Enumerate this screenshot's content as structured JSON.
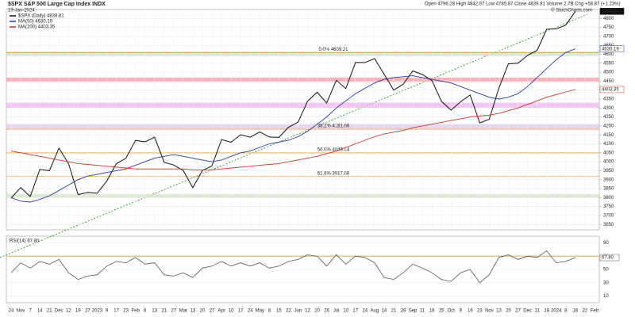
{
  "chart_data": {
    "type": "line",
    "title": "$SPX S&P 500 Large Cap Index INDX",
    "date": "19-Jan-2024",
    "quote": "Open 4796.28 High 4842.07 Low 4785.87 Close 4839.81 Volume 2.7B Chg +58.87 (+1.23%)",
    "credit": "© StockCharts.com",
    "categories": [
      "24",
      "Nov",
      "7",
      "14",
      "21",
      "Dec",
      "12",
      "19",
      "27",
      "2023",
      "9",
      "17",
      "23",
      "Feb",
      "6",
      "13",
      "21",
      "27",
      "Mar",
      "13",
      "20",
      "27",
      "Apr",
      "10",
      "17",
      "24",
      "May",
      "8",
      "15",
      "22",
      "Jun",
      "12",
      "20",
      "26",
      "Jul",
      "10",
      "17",
      "24",
      "Aug",
      "14",
      "21",
      "28",
      "Sep",
      "11",
      "18",
      "25",
      "Oct",
      "9",
      "16",
      "23",
      "Nov",
      "13",
      "20",
      "27",
      "Dec",
      "11",
      "18",
      "2024",
      "8",
      "16",
      "22",
      "Feb"
    ],
    "series": [
      {
        "name": "$SPX (Daily) 4839.81",
        "end_label": "4839.81",
        "color": "#111111",
        "values": [
          3797,
          3856,
          3806,
          3957,
          3950,
          4076,
          3990,
          3817,
          3829,
          3824,
          3892,
          3990,
          4019,
          4119,
          4111,
          4137,
          3997,
          3982,
          3951,
          3855,
          3951,
          3977,
          4124,
          4109,
          4151,
          4137,
          4167,
          4138,
          4136,
          4192,
          4221,
          4338,
          4388,
          4328,
          4455,
          4409,
          4554,
          4554,
          4576,
          4489,
          4400,
          4433,
          4507,
          4487,
          4453,
          4337,
          4288,
          4335,
          4373,
          4217,
          4237,
          4411,
          4547,
          4550,
          4594,
          4622,
          4740,
          4742,
          4763,
          4839.81,
          null,
          null
        ]
      },
      {
        "name": "MA(50) 4630.19",
        "end_label": "4630.19",
        "color": "#2b3a9a",
        "values": [
          3800,
          3780,
          3775,
          3790,
          3810,
          3840,
          3870,
          3900,
          3920,
          3930,
          3940,
          3950,
          3960,
          3980,
          4000,
          4020,
          4030,
          4040,
          4030,
          4020,
          4010,
          4000,
          4010,
          4030,
          4050,
          4060,
          4080,
          4100,
          4110,
          4120,
          4140,
          4170,
          4210,
          4250,
          4300,
          4340,
          4380,
          4410,
          4440,
          4460,
          4470,
          4475,
          4480,
          4470,
          4460,
          4450,
          4440,
          4420,
          4400,
          4380,
          4360,
          4350,
          4360,
          4380,
          4420,
          4470,
          4520,
          4570,
          4610,
          4630.19,
          null,
          null
        ]
      },
      {
        "name": "MA(200) 4403.35",
        "end_label": "4403.35",
        "color": "#c0392b",
        "values": [
          4060,
          4050,
          4040,
          4030,
          4020,
          4010,
          4000,
          3990,
          3985,
          3980,
          3975,
          3970,
          3965,
          3960,
          3960,
          3960,
          3960,
          3960,
          3960,
          3955,
          3955,
          3955,
          3960,
          3965,
          3970,
          3975,
          3980,
          3985,
          3990,
          4000,
          4010,
          4020,
          4030,
          4045,
          4060,
          4080,
          4100,
          4120,
          4140,
          4155,
          4165,
          4175,
          4190,
          4200,
          4210,
          4220,
          4230,
          4240,
          4250,
          4255,
          4260,
          4270,
          4285,
          4300,
          4320,
          4340,
          4360,
          4375,
          4390,
          4403.35,
          null,
          null
        ]
      }
    ],
    "ylim": [
      3620,
      4850
    ],
    "yticks": [
      3650,
      3700,
      3750,
      3800,
      3850,
      3900,
      3950,
      4000,
      4050,
      4100,
      4150,
      4200,
      4250,
      4300,
      4350,
      4400,
      4450,
      4500,
      4550,
      4600,
      4650,
      4700,
      4750,
      4800
    ],
    "grid": true,
    "levels": [
      {
        "value": 4609.21,
        "label": "0.0% 4609.21",
        "color": "#e0a040"
      },
      {
        "value": 4181.66,
        "label": "38.2% 4181.66",
        "color": "#e0a040"
      },
      {
        "value": 4049.44,
        "label": "50.0% 4049.44",
        "color": "#e0a040"
      },
      {
        "value": 3917.66,
        "label": "61.8% 3917.66",
        "color": "#e0a040"
      }
    ],
    "bands": [
      {
        "from": 4590,
        "to": 4615,
        "color": "#cfe6c8"
      },
      {
        "from": 4445,
        "to": 4470,
        "color": "#f5a0a8"
      },
      {
        "from": 4300,
        "to": 4330,
        "color": "#f0b8f0"
      },
      {
        "from": 4185,
        "to": 4210,
        "color": "#e4c8ee"
      },
      {
        "from": 3800,
        "to": 3820,
        "color": "#cfe6c8"
      }
    ],
    "rsi": {
      "name": "RSI(14) 67.80",
      "end_label": "67.80",
      "color": "#555555",
      "values": [
        45,
        60,
        52,
        62,
        58,
        65,
        45,
        35,
        40,
        42,
        55,
        62,
        60,
        68,
        58,
        60,
        42,
        40,
        45,
        38,
        52,
        55,
        62,
        55,
        60,
        55,
        60,
        52,
        55,
        62,
        65,
        72,
        70,
        55,
        72,
        58,
        70,
        68,
        60,
        38,
        35,
        45,
        58,
        52,
        45,
        35,
        32,
        45,
        50,
        30,
        42,
        68,
        72,
        65,
        70,
        68,
        78,
        60,
        62,
        67.8,
        null,
        null
      ],
      "ylim": [
        0,
        100
      ],
      "yticks": [
        10,
        30,
        50,
        70,
        90
      ],
      "overbought": 70
    }
  }
}
